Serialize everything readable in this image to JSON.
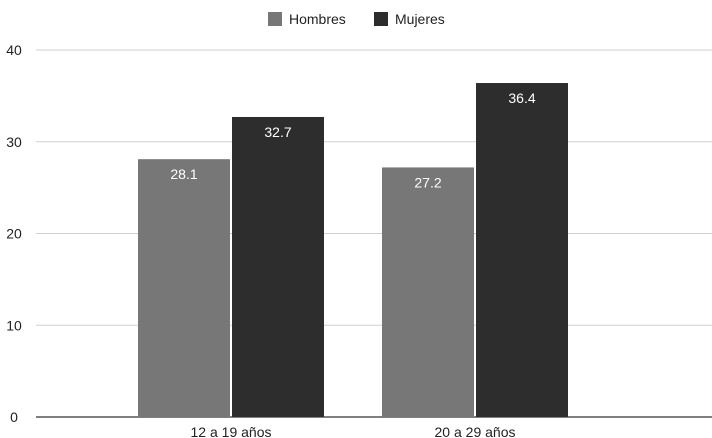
{
  "chart_data": {
    "type": "bar",
    "title": "",
    "xlabel": "",
    "ylabel": "",
    "categories": [
      "12 a 19 años",
      "20 a 29 años"
    ],
    "series": [
      {
        "name": "Hombres",
        "values": [
          28.1,
          27.2
        ],
        "color": "#777777"
      },
      {
        "name": "Mujeres",
        "values": [
          32.7,
          36.4
        ],
        "color": "#2d2d2d"
      }
    ],
    "ylim": [
      0,
      40
    ],
    "yticks": [
      "0",
      "10",
      "20",
      "30",
      "40"
    ],
    "value_labels": [
      [
        "28.1",
        "27.2"
      ],
      [
        "32.7",
        "36.4"
      ]
    ],
    "grid": true,
    "legend_position": "top-center"
  }
}
